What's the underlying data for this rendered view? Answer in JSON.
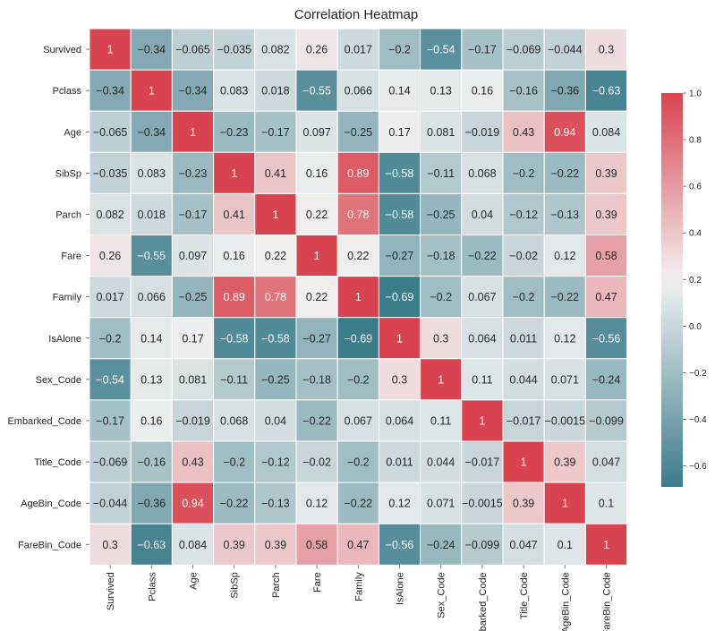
{
  "chart_data": {
    "type": "heatmap",
    "title": "Correlation Heatmap",
    "xlabel": "",
    "ylabel": "",
    "labels": [
      "Survived",
      "Pclass",
      "Age",
      "SibSp",
      "Parch",
      "Fare",
      "Family",
      "IsAlone",
      "Sex_Code",
      "Embarked_Code",
      "Title_Code",
      "AgeBin_Code",
      "FareBin_Code"
    ],
    "matrix": [
      [
        1,
        -0.34,
        -0.065,
        -0.035,
        0.082,
        0.26,
        0.017,
        -0.2,
        -0.54,
        -0.17,
        -0.069,
        -0.044,
        0.3
      ],
      [
        -0.34,
        1,
        -0.34,
        0.083,
        0.018,
        -0.55,
        0.066,
        0.14,
        0.13,
        0.16,
        -0.16,
        -0.36,
        -0.63
      ],
      [
        -0.065,
        -0.34,
        1,
        -0.23,
        -0.17,
        0.097,
        -0.25,
        0.17,
        0.081,
        -0.019,
        0.43,
        0.94,
        0.084
      ],
      [
        -0.035,
        0.083,
        -0.23,
        1,
        0.41,
        0.16,
        0.89,
        -0.58,
        -0.11,
        0.068,
        -0.2,
        -0.22,
        0.39
      ],
      [
        0.082,
        0.018,
        -0.17,
        0.41,
        1,
        0.22,
        0.78,
        -0.58,
        -0.25,
        0.04,
        -0.12,
        -0.13,
        0.39
      ],
      [
        0.26,
        -0.55,
        0.097,
        0.16,
        0.22,
        1,
        0.22,
        -0.27,
        -0.18,
        -0.22,
        -0.02,
        0.12,
        0.58
      ],
      [
        0.017,
        0.066,
        -0.25,
        0.89,
        0.78,
        0.22,
        1,
        -0.69,
        -0.2,
        0.067,
        -0.2,
        -0.22,
        0.47
      ],
      [
        -0.2,
        0.14,
        0.17,
        -0.58,
        -0.58,
        -0.27,
        -0.69,
        1,
        0.3,
        0.064,
        0.011,
        0.12,
        -0.56
      ],
      [
        -0.54,
        0.13,
        0.081,
        -0.11,
        -0.25,
        -0.18,
        -0.2,
        0.3,
        1,
        0.11,
        0.044,
        0.071,
        -0.24
      ],
      [
        -0.17,
        0.16,
        -0.019,
        0.068,
        0.04,
        -0.22,
        0.067,
        0.064,
        0.11,
        1,
        -0.017,
        -0.0015,
        -0.099
      ],
      [
        -0.069,
        -0.16,
        0.43,
        -0.2,
        -0.12,
        -0.02,
        -0.2,
        0.011,
        0.044,
        -0.017,
        1,
        0.39,
        0.047
      ],
      [
        -0.044,
        -0.36,
        0.94,
        -0.22,
        -0.13,
        0.12,
        -0.22,
        0.12,
        0.071,
        -0.0015,
        0.39,
        1,
        0.1
      ],
      [
        0.3,
        -0.63,
        0.084,
        0.39,
        0.39,
        0.58,
        0.47,
        -0.56,
        -0.24,
        -0.099,
        0.047,
        0.1,
        1
      ]
    ],
    "colorbar": {
      "vmin": -0.69,
      "vmax": 1.0,
      "ticks": [
        -0.6,
        -0.4,
        -0.2,
        0.0,
        0.2,
        0.4,
        0.6,
        0.8,
        1.0
      ],
      "tick_labels": [
        "−0.6",
        "−0.4",
        "−0.2",
        "0.0",
        "0.2",
        "0.4",
        "0.6",
        "0.8",
        "1.0"
      ]
    },
    "colors": {
      "low": "#3b7c8b",
      "mid": "#f2f2f2",
      "high": "#d9434f",
      "text_light": "#ffffff",
      "text_dark": "#262626"
    }
  }
}
